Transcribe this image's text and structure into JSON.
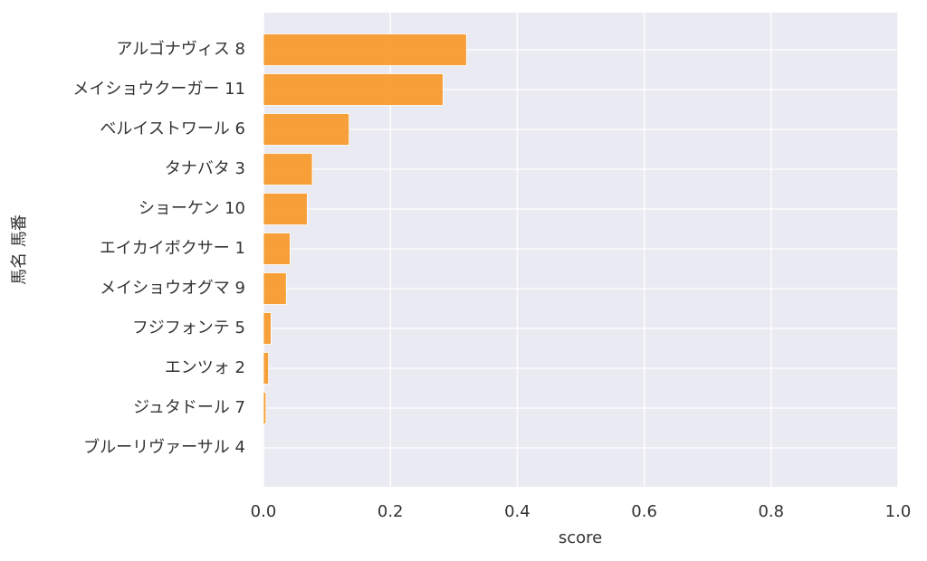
{
  "chart_data": {
    "type": "barh",
    "categories": [
      "アルゴナヴィス 8",
      "メイショウクーガー 11",
      "ベルイストワール 6",
      "タナバタ 3",
      "ショーケン 10",
      "エイカイボクサー 1",
      "メイショウオグマ 9",
      "フジフォンテ 5",
      "エンツォ 2",
      "ジュタドール 7",
      "ブルーリヴァーサル 4"
    ],
    "values": [
      0.32,
      0.283,
      0.135,
      0.077,
      0.069,
      0.042,
      0.036,
      0.012,
      0.008,
      0.004,
      0
    ],
    "color": "#f89b2e",
    "xlabel": "score",
    "ylabel": "馬名 馬番",
    "xlim": [
      0,
      1
    ],
    "xticks": [
      {
        "value": 0,
        "label": "0.0"
      },
      0.2,
      0.4,
      0.6,
      0.8,
      {
        "value": 1,
        "label": "1.0"
      }
    ],
    "grid": true
  }
}
